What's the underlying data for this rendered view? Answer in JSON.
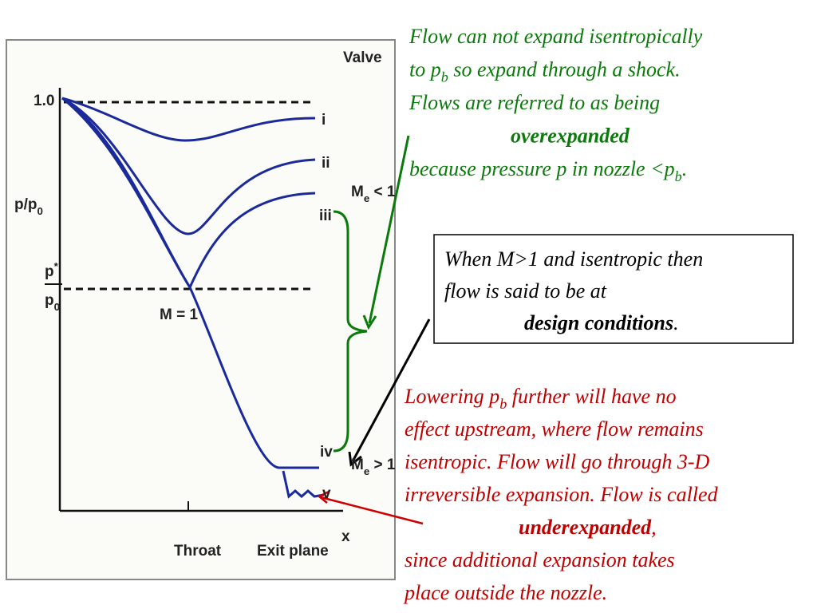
{
  "figure": {
    "valve": [
      "Valve"
    ],
    "one": [
      "1.0"
    ],
    "p_over_p0": [
      "p/p",
      {
        "sub": "0"
      }
    ],
    "p_star": [
      "p",
      {
        "sup": "*"
      }
    ],
    "p0": [
      "p",
      {
        "sub": "0"
      }
    ],
    "m_equals_1": [
      "M = 1"
    ],
    "curve_i": [
      "i"
    ],
    "curve_ii": [
      "ii"
    ],
    "curve_iii": [
      "iii"
    ],
    "curve_iv": [
      "iv"
    ],
    "curve_v": [
      "v"
    ],
    "me_lt_1": [
      "M",
      {
        "sub": "e"
      },
      " < 1"
    ],
    "me_gt_1": [
      "M",
      {
        "sub": "e"
      },
      " > 1"
    ],
    "throat": [
      "Throat"
    ],
    "exit_plane": [
      "Exit plane"
    ],
    "x_axis": [
      "x"
    ]
  },
  "overexpanded_note": {
    "lines": [
      [
        "Flow can not expand isentropically"
      ],
      [
        "to p",
        {
          "sub": "b"
        },
        " so expand through a shock."
      ],
      [
        "Flows are referred to as being"
      ],
      [
        {
          "bold": "overexpanded"
        }
      ],
      [
        "because pressure p in nozzle <p",
        {
          "sub": "b"
        },
        "."
      ]
    ]
  },
  "design_note": {
    "lines": [
      [
        "When M>1 and isentropic then"
      ],
      [
        "flow is said to be at"
      ],
      [
        {
          "bold": "design conditions"
        },
        "."
      ]
    ]
  },
  "underexpanded_note": {
    "lines": [
      [
        "Lowering p",
        {
          "sub": "b"
        },
        " further will have no"
      ],
      [
        "effect upstream, where flow remains"
      ],
      [
        "isentropic. Flow will go through 3-D"
      ],
      [
        "irreversible expansion. Flow is called"
      ],
      [
        {
          "bold": "underexpanded"
        },
        ","
      ],
      [
        "since additional expansion takes"
      ],
      [
        "place outside the nozzle."
      ]
    ]
  }
}
